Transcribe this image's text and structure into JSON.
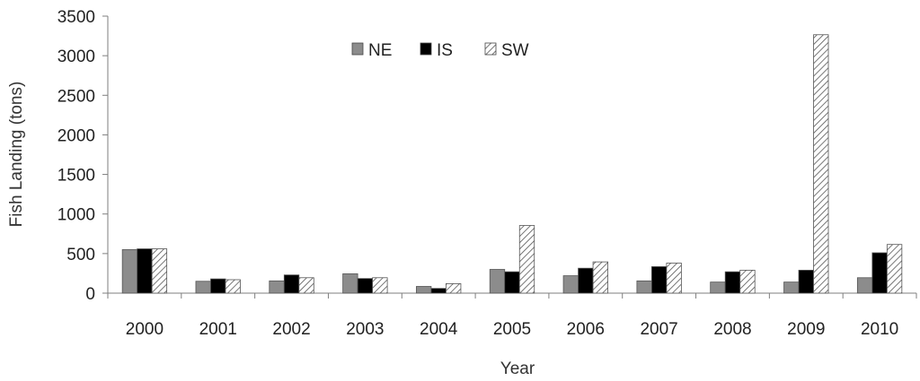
{
  "chart_data": {
    "type": "bar",
    "title": "",
    "xlabel": "Year",
    "ylabel": "Fish Landing  (tons)",
    "ylim": [
      0,
      3500
    ],
    "yticks": [
      0,
      500,
      1000,
      1500,
      2000,
      2500,
      3000,
      3500
    ],
    "grid": false,
    "legend_position": "top-center",
    "categories": [
      "2000",
      "2001",
      "2002",
      "2003",
      "2004",
      "2005",
      "2006",
      "2007",
      "2008",
      "2009",
      "2010"
    ],
    "series": [
      {
        "name": "NE",
        "fill": "#8c8c8c",
        "pattern": "solid",
        "values": [
          550,
          150,
          155,
          245,
          85,
          300,
          220,
          155,
          140,
          140,
          195
        ]
      },
      {
        "name": "IS",
        "fill": "#000000",
        "pattern": "solid",
        "values": [
          560,
          180,
          230,
          185,
          60,
          270,
          315,
          335,
          270,
          290,
          510
        ]
      },
      {
        "name": "SW",
        "fill": "#ffffff",
        "pattern": "diagonal-hatch",
        "values": [
          560,
          170,
          195,
          195,
          120,
          855,
          395,
          380,
          290,
          3265,
          615
        ]
      }
    ]
  }
}
